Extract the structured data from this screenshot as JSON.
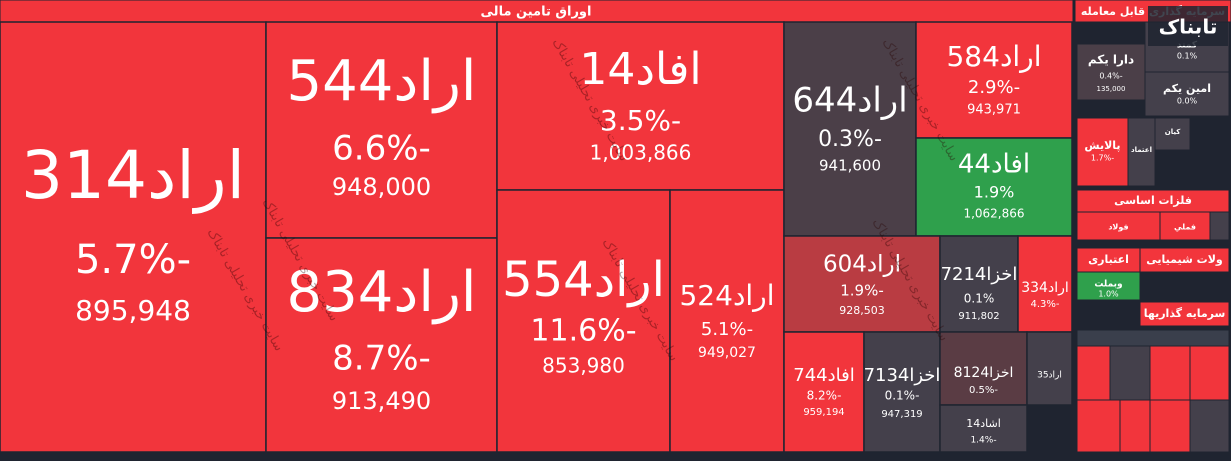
{
  "header": {
    "title": "اوراق تامین مالی"
  },
  "watermark": "سایت خبری تحلیلی تابناک",
  "logo": "تابناک",
  "tiles": [
    {
      "name": "اراد314",
      "change": "-5.7%",
      "price": "895,948",
      "color": "#f2353c"
    },
    {
      "name": "اراد544",
      "change": "-6.6%",
      "price": "948,000",
      "color": "#f2353c"
    },
    {
      "name": "اراد834",
      "change": "-8.7%",
      "price": "913,490",
      "color": "#f2353c"
    },
    {
      "name": "افاد14",
      "change": "-3.5%",
      "price": "1,003,866",
      "color": "#f2353c"
    },
    {
      "name": "اراد554",
      "change": "-11.6%",
      "price": "853,980",
      "color": "#f2353c"
    },
    {
      "name": "اراد524",
      "change": "-5.1%",
      "price": "949,027",
      "color": "#f2353c"
    },
    {
      "name": "اراد644",
      "change": "-0.3%",
      "price": "941,600",
      "color": "#4b3f48"
    },
    {
      "name": "اراد584",
      "change": "-2.9%",
      "price": "943,971",
      "color": "#f2353c"
    },
    {
      "name": "افاد44",
      "change": "1.9%",
      "price": "1,062,866",
      "color": "#2fa04c"
    },
    {
      "name": "اراد604",
      "change": "-1.9%",
      "price": "928,503",
      "color": "#b93c42"
    },
    {
      "name": "اخزا7214",
      "change": "0.1%",
      "price": "911,802",
      "color": "#44404b"
    },
    {
      "name": "اراد334",
      "change": "-4.3%",
      "color": "#f2353c"
    },
    {
      "name": "افاد744",
      "change": "-8.2%",
      "price": "959,194",
      "color": "#f2353c"
    },
    {
      "name": "اخزا7134",
      "change": "-0.1%",
      "price": "947,319",
      "color": "#44404b"
    },
    {
      "name": "اخزا8124",
      "change": "-0.5%",
      "color": "#5a3c44"
    },
    {
      "name": "اراد35",
      "color": "#44404b"
    },
    {
      "name": "اشاد14",
      "change": "-1.4%",
      "color": "#44404b"
    }
  ],
  "side": [
    {
      "name": "سرمایه گذاری قابل معامله",
      "color": "#f2353c"
    },
    {
      "name": "دارا یکم",
      "change": "-0.4%",
      "price": "135,000",
      "color": "#4b3f48"
    },
    {
      "name": "کمند",
      "change": "0.1%",
      "color": "#44404b"
    },
    {
      "name": "امین یکم",
      "change": "0.0%",
      "color": "#44404b"
    },
    {
      "name": "پالایش",
      "change": "-1.7%",
      "color": "#f2353c"
    },
    {
      "name": "اعتماد",
      "color": "#44404b"
    },
    {
      "name": "کیان",
      "color": "#44404b"
    },
    {
      "name": "فلزات اساسی",
      "color": "#f2353c"
    },
    {
      "name": "فولاد",
      "color": "#f2353c"
    },
    {
      "name": "فملي",
      "color": "#f2353c"
    },
    {
      "name": "اعتباری",
      "color": "#f2353c"
    },
    {
      "name": "وبملت",
      "change": "1.0%",
      "color": "#2fa04c"
    },
    {
      "name": "ولات شیمیایی",
      "color": "#f2353c"
    },
    {
      "name": "سرمایه گذاریها",
      "color": "#f2353c"
    }
  ]
}
